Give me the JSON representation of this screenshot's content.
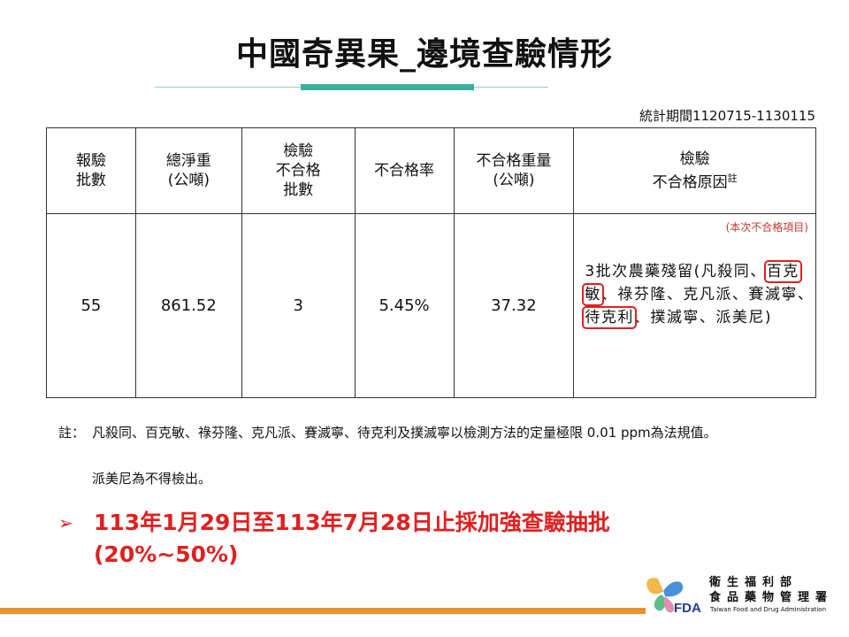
{
  "title": "中國奇異果_邊境查驗情形",
  "period": "統計期間1120715-1130115",
  "table": {
    "headers": {
      "batches": [
        "報驗",
        "批數"
      ],
      "weight": [
        "總淨重",
        "(公噸)"
      ],
      "fail_batches": [
        "檢驗",
        "不合格",
        "批數"
      ],
      "fail_rate": "不合格率",
      "fail_weight": [
        "不合格重量",
        "(公噸)"
      ],
      "reason": [
        "檢驗",
        "不合格原因"
      ],
      "reason_sup": "註"
    },
    "row": {
      "batches": "55",
      "weight": "861.52",
      "fail_batches": "3",
      "fail_rate": "5.45%",
      "fail_weight": "37.32"
    },
    "reason_note": "(本次不合格項目)",
    "reason_parts": [
      "3批次農藥殘留(凡殺同、",
      "百克敏",
      "、祿芬隆、克凡派、賽滅寧、",
      "待克利",
      "、撲滅寧、派美尼)"
    ]
  },
  "note_label": "註：",
  "note_text": "凡殺同、百克敏、祿芬隆、克凡派、賽滅寧、待克利及撲滅寧以檢測方法的定量極限 0.01 ppm為法規值。",
  "note2": "派美尼為不得檢出。",
  "bullet_arrow": "➢",
  "bullet_text": "113年1月29日至113年7月28日止採加強查驗抽批(20%~50%)",
  "logo": {
    "line1": "衛生福利部",
    "line2": "食品藥物管理署",
    "mark": "FDA",
    "english": "Taiwan Food and Drug Administration"
  },
  "colors": {
    "accent_teal": "#3aafa0",
    "alert_red": "#e02020",
    "footer_orange": "#e8912d"
  }
}
